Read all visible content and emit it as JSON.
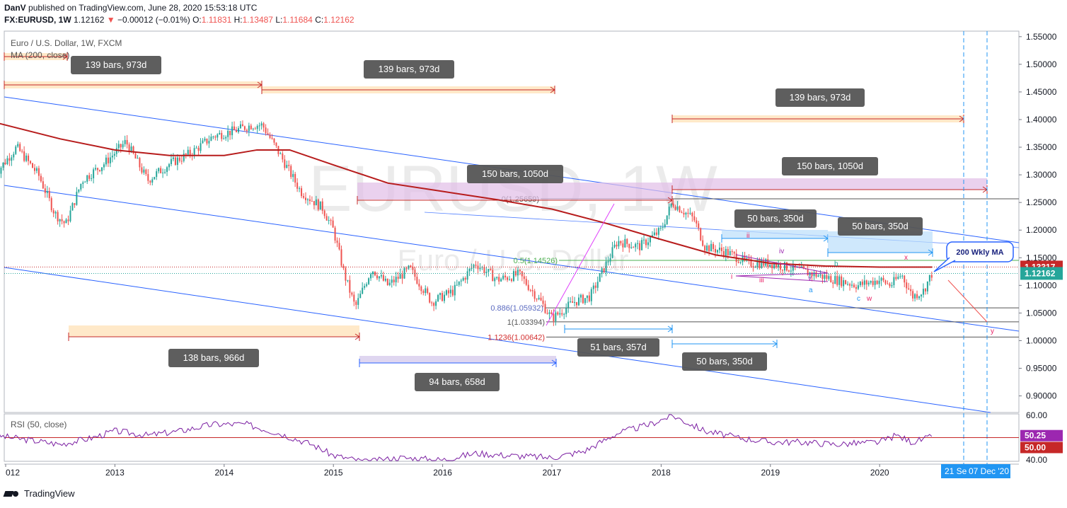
{
  "header": {
    "author": "DanV",
    "published": "published on TradingView.com, June 28, 2020 15:53:18 UTC",
    "symbol": "FX:EURUSD, 1W",
    "last": "1.12162",
    "change_arrow": "▼",
    "change": "−0.00012 (−0.01%)",
    "o_label": "O:",
    "o_val": "1.11831",
    "h_label": "H:",
    "h_val": "1.13487",
    "l_label": "L:",
    "l_val": "1.11684",
    "c_label": "C:",
    "c_val": "1.12162"
  },
  "legend": {
    "title": "Euro / U.S. Dollar, 1W, FXCM",
    "ma": "MA (200, close)",
    "rsi": "RSI (50, close)"
  },
  "watermark": {
    "big": "EURUSD, 1W",
    "small": "Euro / U.S. Dollar"
  },
  "footer": {
    "brand": "TradingView"
  },
  "colors": {
    "up": "#26a69a",
    "down": "#ef5350",
    "ma": "#b71c1c",
    "channel": "#2962ff",
    "rsi": "#7b1fa2",
    "price_tag": "#26a69a",
    "ma_tag": "#c62828",
    "date_tag": "#2196f3"
  },
  "chart_data": [
    {
      "type": "line",
      "title": "Euro / U.S. Dollar, 1W, FXCM",
      "x_ticks": [
        "012",
        "2013",
        "2014",
        "2015",
        "2016",
        "2017",
        "2018",
        "2019",
        "2020"
      ],
      "y_ticks": [
        "0.90000",
        "0.95000",
        "1.00000",
        "1.05000",
        "1.10000",
        "1.15000",
        "1.20000",
        "1.25000",
        "1.30000",
        "1.35000",
        "1.40000",
        "1.45000",
        "1.50000",
        "1.55000"
      ],
      "ylim": [
        0.87,
        1.56
      ],
      "series": [
        {
          "name": "EURUSD",
          "x": [
            2011.9,
            2012.1,
            2012.3,
            2012.45,
            2012.55,
            2012.7,
            2012.9,
            2013.1,
            2013.3,
            2013.5,
            2013.7,
            2013.9,
            2014.1,
            2014.25,
            2014.35,
            2014.5,
            2014.7,
            2014.9,
            2015.0,
            2015.1,
            2015.2,
            2015.35,
            2015.5,
            2015.7,
            2015.9,
            2016.1,
            2016.3,
            2016.5,
            2016.7,
            2016.9,
            2017.0,
            2017.2,
            2017.35,
            2017.5,
            2017.6,
            2017.8,
            2018.0,
            2018.1,
            2018.3,
            2018.4,
            2018.6,
            2018.8,
            2019.0,
            2019.2,
            2019.4,
            2019.6,
            2019.8,
            2020.0,
            2020.1,
            2020.2,
            2020.3,
            2020.4,
            2020.48
          ],
          "y": [
            1.3,
            1.35,
            1.3,
            1.23,
            1.21,
            1.29,
            1.32,
            1.36,
            1.29,
            1.32,
            1.34,
            1.37,
            1.38,
            1.39,
            1.39,
            1.34,
            1.27,
            1.24,
            1.2,
            1.12,
            1.06,
            1.13,
            1.1,
            1.13,
            1.07,
            1.09,
            1.14,
            1.11,
            1.12,
            1.07,
            1.04,
            1.07,
            1.08,
            1.14,
            1.18,
            1.17,
            1.2,
            1.25,
            1.22,
            1.17,
            1.16,
            1.14,
            1.14,
            1.13,
            1.12,
            1.11,
            1.1,
            1.11,
            1.1,
            1.12,
            1.08,
            1.09,
            1.122
          ]
        },
        {
          "name": "MA (200, close)",
          "x": [
            2011.9,
            2012.5,
            2013.0,
            2013.5,
            2014.0,
            2014.3,
            2014.6,
            2015.0,
            2015.5,
            2016.0,
            2016.5,
            2017.0,
            2017.5,
            2018.0,
            2018.5,
            2019.0,
            2019.5,
            2020.0,
            2020.48
          ],
          "y": [
            1.395,
            1.365,
            1.345,
            1.335,
            1.335,
            1.345,
            1.345,
            1.318,
            1.285,
            1.27,
            1.255,
            1.238,
            1.212,
            1.183,
            1.155,
            1.14,
            1.135,
            1.133,
            1.133
          ]
        }
      ],
      "price_labels": [
        {
          "text": "1.13317",
          "value": 1.13317,
          "color": "#c62828"
        },
        {
          "text": "1.12162",
          "value": 1.12162,
          "color": "#26a69a"
        }
      ],
      "date_labels": [
        "21 Se",
        "07 Dec '20"
      ],
      "fib_levels": [
        {
          "text": "0(1.25659)",
          "value": 1.25659,
          "color": "#555555"
        },
        {
          "text": "0.5(1.14526)",
          "value": 1.14526,
          "color": "#4caf50"
        },
        {
          "text": "0.886(1.05932)",
          "value": 1.05932,
          "color": "#5c6bc0"
        },
        {
          "text": "1(1.03394)",
          "value": 1.03394,
          "color": "#555555"
        },
        {
          "text": "1.1236(1.00642)",
          "value": 1.00642,
          "color": "#d32f2f"
        }
      ],
      "annotations": {
        "range_labels": [
          "139 bars, 973d",
          "139 bars, 973d",
          "139 bars, 973d",
          "150 bars, 1050d",
          "150 bars, 1050d",
          "50 bars, 350d",
          "50 bars, 350d",
          "138 bars, 966d",
          "94 bars, 658d",
          "51 bars, 357d",
          "50 bars, 350d"
        ],
        "callout": "200 Wkly MA",
        "waves": [
          "i",
          "ii",
          "iii",
          "iv",
          "v",
          "a",
          "b",
          "c",
          "w",
          "x",
          "y"
        ]
      }
    },
    {
      "type": "line",
      "title": "RSI (50, close)",
      "y_ticks": [
        "40.00",
        "60.00"
      ],
      "ylim": [
        40,
        62
      ],
      "price_labels": [
        {
          "text": "50.25",
          "value": 50.25,
          "color": "#9c27b0"
        },
        {
          "text": "50.00",
          "value": 50.0,
          "color": "#c62828"
        }
      ],
      "series": [
        {
          "name": "RSI",
          "x": [
            2011.9,
            2012.2,
            2012.5,
            2012.8,
            2013.0,
            2013.3,
            2013.6,
            2013.9,
            2014.2,
            2014.5,
            2014.8,
            2015.0,
            2015.3,
            2015.6,
            2016.0,
            2016.3,
            2016.6,
            2017.0,
            2017.3,
            2017.6,
            2017.9,
            2018.1,
            2018.4,
            2018.7,
            2019.0,
            2019.3,
            2019.6,
            2020.0,
            2020.15,
            2020.3,
            2020.48
          ],
          "y": [
            51,
            49,
            47,
            50,
            53,
            51,
            53,
            56,
            56,
            52,
            47,
            42,
            39,
            41,
            40,
            43,
            42,
            41,
            44,
            52,
            56,
            60,
            53,
            50,
            48,
            48,
            47,
            48,
            51,
            48,
            50.25
          ]
        }
      ]
    }
  ]
}
